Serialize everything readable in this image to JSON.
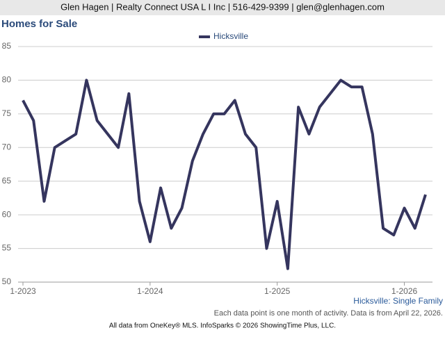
{
  "header": "Glen Hagen | Realty Connect USA L I Inc | 516-429-9399 | glen@glenhagen.com",
  "chart_data": {
    "type": "line",
    "title": "Homes for Sale",
    "categories": [
      "1-2023",
      null,
      null,
      null,
      null,
      null,
      null,
      null,
      null,
      null,
      null,
      null,
      "1-2024",
      null,
      null,
      null,
      null,
      null,
      null,
      null,
      null,
      null,
      null,
      null,
      "1-2025",
      null,
      null,
      null,
      null,
      null,
      null,
      null,
      null,
      null,
      null,
      null,
      "1-2026",
      null,
      null
    ],
    "series": [
      {
        "name": "Hicksville",
        "color": "#35355e",
        "values": [
          77,
          74,
          62,
          70,
          71,
          72,
          80,
          74,
          72,
          70,
          78,
          62,
          56,
          64,
          58,
          61,
          68,
          72,
          75,
          75,
          77,
          72,
          70,
          55,
          62,
          52,
          76,
          72,
          76,
          78,
          80,
          79,
          79,
          72,
          58,
          57,
          61,
          58,
          63
        ]
      }
    ],
    "ylim": [
      50,
      85
    ],
    "yticks": [
      50,
      55,
      60,
      65,
      70,
      75,
      80,
      85
    ],
    "grid": true,
    "legend": "top",
    "annotations": [
      "Hicksville: Single Family",
      "Each data point is one month of activity. Data is from April 22, 2026."
    ]
  },
  "footer": "All data from OneKey® MLS. InfoSparks © 2026 ShowingTime Plus, LLC."
}
